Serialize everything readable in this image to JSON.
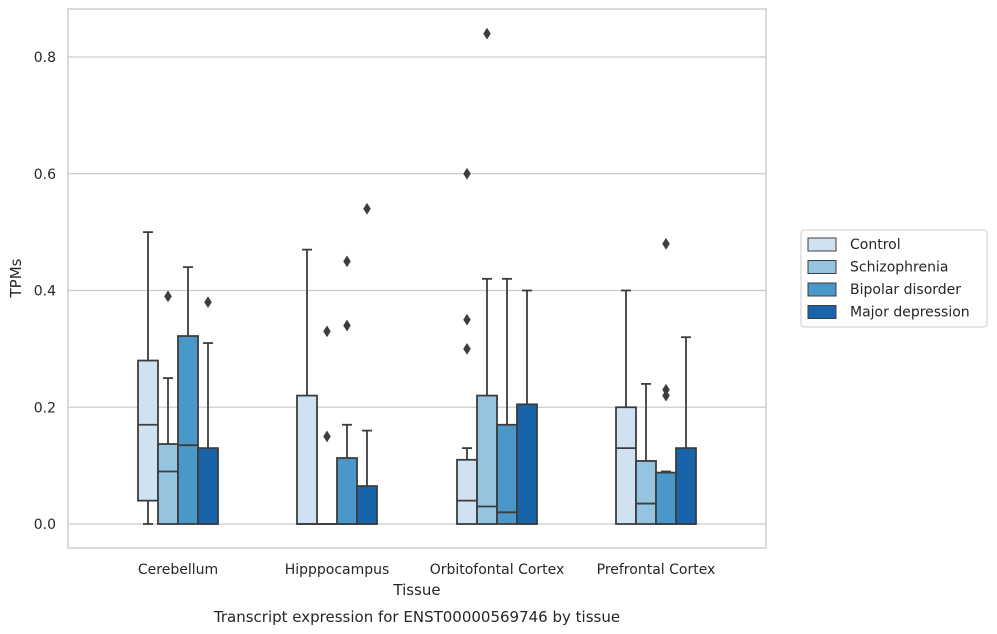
{
  "chart_data": {
    "type": "box",
    "title": "Transcript expression for ENST00000569746 by tissue",
    "xlabel": "Tissue",
    "ylabel": "TPMs",
    "ylim": [
      -0.04,
      0.885
    ],
    "yticks": [
      0.0,
      0.2,
      0.4,
      0.6,
      0.8
    ],
    "ytick_labels": [
      "0.0",
      "0.2",
      "0.4",
      "0.6",
      "0.8"
    ],
    "grid": true,
    "legend_position": "right",
    "categories": [
      "Cerebellum",
      "Hipppocampus",
      "Orbitofontal Cortex",
      "Prefrontal Cortex"
    ],
    "series": [
      {
        "name": "Control",
        "color": "#d0e1f2",
        "boxes": [
          {
            "min": 0.0,
            "q1": 0.04,
            "median": 0.17,
            "q3": 0.28,
            "max": 0.5,
            "outliers": []
          },
          {
            "min": 0.0,
            "q1": 0.0,
            "median": 0.0,
            "q3": 0.22,
            "max": 0.47,
            "outliers": []
          },
          {
            "min": 0.0,
            "q1": 0.0,
            "median": 0.04,
            "q3": 0.11,
            "max": 0.13,
            "outliers": [
              0.3,
              0.35,
              0.6
            ]
          },
          {
            "min": 0.0,
            "q1": 0.0,
            "median": 0.13,
            "q3": 0.2,
            "max": 0.4,
            "outliers": []
          }
        ]
      },
      {
        "name": "Schizophrenia",
        "color": "#94c4df",
        "boxes": [
          {
            "min": 0.0,
            "q1": 0.0,
            "median": 0.09,
            "q3": 0.137,
            "max": 0.25,
            "outliers": [
              0.39
            ]
          },
          {
            "min": 0.0,
            "q1": 0.0,
            "median": 0.0,
            "q3": 0.0,
            "max": 0.0,
            "outliers": [
              0.15,
              0.33
            ]
          },
          {
            "min": 0.0,
            "q1": 0.0,
            "median": 0.03,
            "q3": 0.22,
            "max": 0.42,
            "outliers": [
              0.84
            ]
          },
          {
            "min": 0.0,
            "q1": 0.0,
            "median": 0.035,
            "q3": 0.108,
            "max": 0.24,
            "outliers": []
          }
        ]
      },
      {
        "name": "Bipolar disorder",
        "color": "#4a98c9",
        "boxes": [
          {
            "min": 0.0,
            "q1": 0.0,
            "median": 0.135,
            "q3": 0.322,
            "max": 0.44,
            "outliers": []
          },
          {
            "min": 0.0,
            "q1": 0.0,
            "median": 0.0,
            "q3": 0.113,
            "max": 0.17,
            "outliers": [
              0.34,
              0.45
            ]
          },
          {
            "min": 0.0,
            "q1": 0.0,
            "median": 0.02,
            "q3": 0.17,
            "max": 0.42,
            "outliers": []
          },
          {
            "min": 0.0,
            "q1": 0.0,
            "median": 0.0,
            "q3": 0.088,
            "max": 0.09,
            "outliers": [
              0.22,
              0.23,
              0.48
            ]
          }
        ]
      },
      {
        "name": "Major depression",
        "color": "#1764ab",
        "boxes": [
          {
            "min": 0.0,
            "q1": 0.0,
            "median": 0.0,
            "q3": 0.13,
            "max": 0.31,
            "outliers": [
              0.38
            ]
          },
          {
            "min": 0.0,
            "q1": 0.0,
            "median": 0.0,
            "q3": 0.065,
            "max": 0.16,
            "outliers": [
              0.54
            ]
          },
          {
            "min": 0.0,
            "q1": 0.0,
            "median": 0.0,
            "q3": 0.205,
            "max": 0.4,
            "outliers": []
          },
          {
            "min": 0.0,
            "q1": 0.0,
            "median": 0.0,
            "q3": 0.13,
            "max": 0.32,
            "outliers": []
          }
        ]
      }
    ]
  }
}
